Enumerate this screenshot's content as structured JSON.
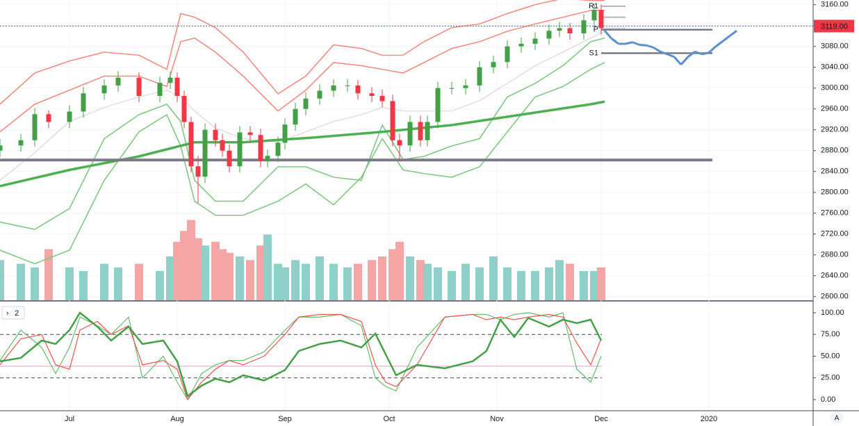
{
  "chart_data": [
    {
      "type": "candlestick",
      "xlim": [
        10,
        244
      ],
      "ylim": [
        2593,
        3169
      ],
      "xticks": [
        {
          "value": 30,
          "label": "Jul"
        },
        {
          "value": 61,
          "label": "Aug"
        },
        {
          "value": 92,
          "label": "Sep"
        },
        {
          "value": 122,
          "label": "Oct"
        },
        {
          "value": 153,
          "label": "Nov"
        },
        {
          "value": 183,
          "label": "Dec"
        },
        {
          "value": 214,
          "label": "2020"
        }
      ],
      "yticks": [
        {
          "value": 3160,
          "label": "3160.00"
        },
        {
          "value": 3120,
          "label": "3120.00"
        },
        {
          "value": 3080,
          "label": "3080.00"
        },
        {
          "value": 3040,
          "label": "3040.00"
        },
        {
          "value": 3000,
          "label": "3000.00"
        },
        {
          "value": 2960,
          "label": "2960.00"
        },
        {
          "value": 2920,
          "label": "2920.00"
        },
        {
          "value": 2880,
          "label": "2880.00"
        },
        {
          "value": 2840,
          "label": "2840.00"
        },
        {
          "value": 2800,
          "label": "2800.00"
        },
        {
          "value": 2760,
          "label": "2760.00"
        },
        {
          "value": 2720,
          "label": "2720.00"
        },
        {
          "value": 2680,
          "label": "2680.00"
        },
        {
          "value": 2640,
          "label": "2640.00"
        },
        {
          "value": 2600,
          "label": "2600.00"
        }
      ],
      "grid": true,
      "up_color": "#43a047",
      "down_color": "#f23645",
      "up_volume_color": "#8fd0c8",
      "down_volume_color": "#f4a5a5",
      "x": [
        10,
        16,
        20,
        24,
        30,
        34,
        40,
        44,
        50,
        56,
        59,
        61,
        63,
        65,
        67,
        69,
        72,
        74,
        76,
        79,
        82,
        85,
        87,
        90,
        92,
        95,
        98,
        102,
        106,
        110,
        113,
        117,
        120,
        123,
        125,
        128,
        131,
        133,
        136,
        140,
        144,
        148,
        152,
        156,
        160,
        164,
        168,
        171,
        174,
        178,
        181,
        183
      ],
      "open": [
        2880,
        2890,
        2900,
        2950,
        2935,
        2955,
        2990,
        3005,
        3020,
        2985,
        3010,
        3020,
        2985,
        2935,
        2850,
        2830,
        2920,
        2900,
        2880,
        2850,
        2915,
        2910,
        2860,
        2870,
        2895,
        2930,
        2960,
        2980,
        2995,
        3005,
        3005,
        2990,
        2985,
        2975,
        2900,
        2890,
        2935,
        2900,
        2935,
        3000,
        3000,
        3005,
        3040,
        3050,
        3080,
        3085,
        3095,
        3110,
        3115,
        3105,
        3130,
        3150
      ],
      "high": [
        2902,
        2912,
        2962,
        2957,
        2967,
        3002,
        3017,
        3032,
        3030,
        3022,
        3032,
        3030,
        2995,
        2945,
        2870,
        2932,
        2932,
        2912,
        2892,
        2927,
        2927,
        2922,
        2882,
        2907,
        2942,
        2972,
        2992,
        3007,
        3017,
        3017,
        3015,
        3002,
        2997,
        2987,
        2912,
        2947,
        2947,
        2947,
        3012,
        3012,
        3017,
        3052,
        3062,
        3092,
        3097,
        3107,
        3122,
        3127,
        3125,
        3142,
        3162,
        3160
      ],
      "low": [
        2868,
        2878,
        2888,
        2923,
        2923,
        2943,
        2978,
        2993,
        2973,
        2973,
        2998,
        2973,
        2923,
        2838,
        2780,
        2818,
        2888,
        2868,
        2838,
        2838,
        2898,
        2848,
        2848,
        2858,
        2883,
        2918,
        2948,
        2968,
        2983,
        2993,
        2978,
        2973,
        2963,
        2888,
        2860,
        2878,
        2888,
        2888,
        2923,
        2988,
        2988,
        2993,
        3028,
        3038,
        3068,
        3073,
        3083,
        3098,
        3093,
        3093,
        3118,
        3103
      ],
      "close": [
        2890,
        2900,
        2950,
        2935,
        2955,
        2990,
        3005,
        3020,
        2985,
        3010,
        3020,
        2985,
        2935,
        2850,
        2830,
        2920,
        2900,
        2880,
        2850,
        2915,
        2910,
        2860,
        2870,
        2895,
        2930,
        2960,
        2980,
        2995,
        3005,
        3005,
        2990,
        2985,
        2975,
        2900,
        2890,
        2935,
        2900,
        2935,
        3000,
        3000,
        3005,
        3040,
        3050,
        3080,
        3085,
        3095,
        3110,
        3115,
        3105,
        3130,
        3150,
        3115
      ],
      "volume": [
        55,
        50,
        45,
        70,
        45,
        40,
        50,
        45,
        50,
        40,
        60,
        80,
        95,
        110,
        85,
        75,
        80,
        70,
        65,
        60,
        55,
        75,
        90,
        50,
        45,
        55,
        50,
        60,
        50,
        45,
        50,
        55,
        60,
        70,
        80,
        60,
        55,
        50,
        45,
        40,
        50,
        45,
        60,
        45,
        40,
        40,
        45,
        55,
        50,
        40,
        40,
        45
      ],
      "lines": [
        {
          "color": "#f28b82",
          "width": 1.6,
          "x": [
            10,
            20,
            30,
            40,
            50,
            58,
            62,
            66,
            72,
            80,
            90,
            98,
            106,
            114,
            120,
            126,
            132,
            140,
            148,
            156,
            164,
            172,
            180,
            184
          ],
          "values": [
            2969,
            3029,
            3052,
            3069,
            3063,
            3036,
            3143,
            3136,
            3116,
            3069,
            2989,
            3023,
            3083,
            3076,
            3063,
            3063,
            3089,
            3116,
            3123,
            3143,
            3160,
            3172,
            3168,
            3168
          ]
        },
        {
          "color": "#f28b82",
          "width": 1.6,
          "x": [
            10,
            20,
            30,
            40,
            50,
            58,
            62,
            66,
            72,
            80,
            90,
            98,
            106,
            114,
            120,
            126,
            132,
            140,
            148,
            156,
            164,
            172,
            180,
            184
          ],
          "values": [
            2916,
            2969,
            2996,
            3023,
            3023,
            3003,
            3089,
            3096,
            3069,
            3023,
            2956,
            2996,
            3049,
            3043,
            3036,
            3029,
            3049,
            3076,
            3089,
            3109,
            3123,
            3136,
            3149,
            3149
          ]
        },
        {
          "color": "#e0e0e0",
          "width": 1.6,
          "x": [
            10,
            20,
            30,
            40,
            50,
            58,
            62,
            66,
            72,
            80,
            90,
            98,
            106,
            114,
            120,
            126,
            132,
            140,
            148,
            156,
            164,
            172,
            180,
            184
          ],
          "values": [
            2823,
            2876,
            2936,
            2963,
            2983,
            2996,
            2983,
            2956,
            2923,
            2903,
            2896,
            2916,
            2936,
            2949,
            2963,
            2956,
            2956,
            2956,
            2976,
            3009,
            3043,
            3069,
            3096,
            3109
          ]
        },
        {
          "color": "#81c784",
          "width": 1.6,
          "x": [
            10,
            20,
            30,
            40,
            50,
            58,
            62,
            66,
            72,
            80,
            90,
            98,
            106,
            114,
            120,
            126,
            132,
            140,
            148,
            156,
            164,
            172,
            180,
            184
          ],
          "values": [
            2743,
            2729,
            2769,
            2903,
            2949,
            2969,
            2936,
            2823,
            2783,
            2783,
            2849,
            2849,
            2829,
            2823,
            2929,
            2863,
            2869,
            2889,
            2903,
            2983,
            3009,
            3043,
            3089,
            3096
          ]
        },
        {
          "color": "#81c784",
          "width": 1.6,
          "x": [
            10,
            20,
            30,
            40,
            50,
            58,
            62,
            66,
            72,
            80,
            90,
            98,
            106,
            114,
            120,
            126,
            132,
            140,
            148,
            156,
            164,
            172,
            180,
            184
          ],
          "values": [
            2689,
            2663,
            2689,
            2823,
            2916,
            2949,
            2889,
            2783,
            2756,
            2756,
            2783,
            2816,
            2776,
            2829,
            2903,
            2843,
            2836,
            2829,
            2849,
            2916,
            2983,
            3003,
            3036,
            3049
          ]
        },
        {
          "color": "#4caf50",
          "width": 3.5,
          "x": [
            10,
            30,
            50,
            66,
            80,
            100,
            120,
            140,
            160,
            180,
            184
          ],
          "values": [
            2812,
            2843,
            2869,
            2896,
            2896,
            2905,
            2916,
            2929,
            2949,
            2969,
            2974
          ]
        }
      ],
      "levels": [
        {
          "value": 2862,
          "x": [
            10,
            215
          ],
          "color": "#787b86",
          "width": 4
        },
        {
          "value": 3157,
          "x": [
            183,
            190
          ],
          "color": "#b2b5be",
          "width": 2,
          "label": "R1"
        },
        {
          "value": 3136,
          "x": [
            183,
            190
          ],
          "color": "#b2b5be",
          "width": 2
        },
        {
          "value": 3115,
          "x": [
            183,
            190
          ],
          "color": "#d1d4dc",
          "width": 1.5
        },
        {
          "value": 3112,
          "x": [
            183,
            215
          ],
          "color": "#787b86",
          "width": 2.5,
          "label": "P"
        },
        {
          "value": 3067,
          "x": [
            183,
            215
          ],
          "color": "#787b86",
          "width": 2.5,
          "label": "S1"
        }
      ],
      "last_price": {
        "value": 3119,
        "label": "3119.00"
      },
      "forecast": {
        "color": "#5b8fd0",
        "x": [
          184,
          186,
          188,
          190,
          192,
          194,
          196,
          198,
          200,
          202,
          204,
          206,
          208,
          210,
          212,
          214,
          216,
          218,
          220,
          222
        ],
        "values": [
          3110,
          3095,
          3085,
          3085,
          3088,
          3083,
          3082,
          3078,
          3070,
          3065,
          3060,
          3045,
          3060,
          3070,
          3065,
          3068,
          3080,
          3090,
          3100,
          3110
        ]
      }
    },
    {
      "type": "line",
      "indicator": "2",
      "ylim": [
        -12,
        113.6
      ],
      "yticks": [
        {
          "value": 100,
          "label": "100.00"
        },
        {
          "value": 75,
          "label": "75.00"
        },
        {
          "value": 50,
          "label": "50.00"
        },
        {
          "value": 25,
          "label": "25.00"
        },
        {
          "value": 0,
          "label": "0.00"
        }
      ],
      "dashed_levels": [
        75,
        25
      ],
      "middle_level": 38.4,
      "x": [
        10,
        16,
        22,
        26,
        30,
        33,
        38,
        42,
        47,
        51,
        57,
        61,
        64,
        68,
        72,
        76,
        80,
        86,
        92,
        96,
        102,
        108,
        114,
        118,
        121,
        124,
        130,
        138,
        146,
        150,
        154,
        158,
        162,
        168,
        172,
        176,
        180,
        183
      ],
      "series": [
        {
          "color": "#66bb6a",
          "width": 1.2,
          "values": [
            45,
            80,
            60,
            30,
            60,
            95,
            85,
            75,
            95,
            25,
            50,
            20,
            0,
            30,
            40,
            45,
            45,
            55,
            80,
            95,
            95,
            98,
            85,
            25,
            15,
            10,
            60,
            95,
            98,
            98,
            92,
            98,
            100,
            95,
            100,
            35,
            20,
            50
          ]
        },
        {
          "color": "#ef5350",
          "width": 1.2,
          "values": [
            40,
            70,
            75,
            40,
            35,
            80,
            90,
            75,
            85,
            40,
            45,
            35,
            0,
            20,
            35,
            45,
            40,
            50,
            75,
            95,
            98,
            98,
            90,
            40,
            20,
            15,
            40,
            95,
            98,
            92,
            95,
            92,
            95,
            98,
            95,
            65,
            40,
            70
          ]
        },
        {
          "color": "#43a047",
          "width": 2.5,
          "values": [
            44,
            48,
            68,
            64,
            80,
            100,
            84,
            68,
            84,
            64,
            68,
            44,
            4,
            16,
            24,
            20,
            28,
            22,
            34,
            56,
            64,
            68,
            60,
            76,
            52,
            28,
            40,
            36,
            44,
            56,
            92,
            72,
            94,
            84,
            92,
            88,
            92,
            68
          ]
        }
      ]
    }
  ]
}
